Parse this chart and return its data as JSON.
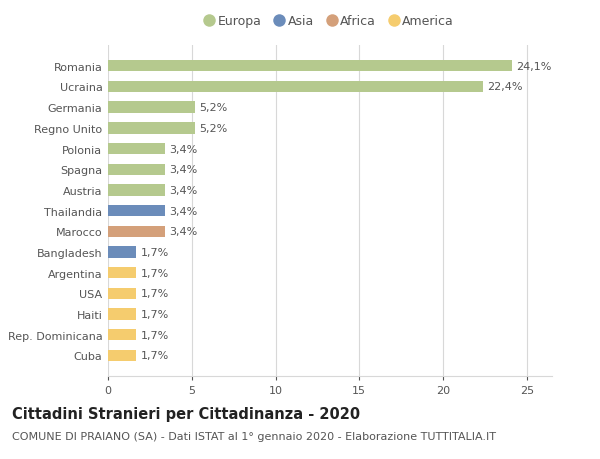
{
  "categories": [
    "Romania",
    "Ucraina",
    "Germania",
    "Regno Unito",
    "Polonia",
    "Spagna",
    "Austria",
    "Thailandia",
    "Marocco",
    "Bangladesh",
    "Argentina",
    "USA",
    "Haiti",
    "Rep. Dominicana",
    "Cuba"
  ],
  "values": [
    24.1,
    22.4,
    5.2,
    5.2,
    3.4,
    3.4,
    3.4,
    3.4,
    3.4,
    1.7,
    1.7,
    1.7,
    1.7,
    1.7,
    1.7
  ],
  "labels": [
    "24,1%",
    "22,4%",
    "5,2%",
    "5,2%",
    "3,4%",
    "3,4%",
    "3,4%",
    "3,4%",
    "3,4%",
    "1,7%",
    "1,7%",
    "1,7%",
    "1,7%",
    "1,7%",
    "1,7%"
  ],
  "continents": [
    "Europa",
    "Europa",
    "Europa",
    "Europa",
    "Europa",
    "Europa",
    "Europa",
    "Asia",
    "Africa",
    "Asia",
    "America",
    "America",
    "America",
    "America",
    "America"
  ],
  "continent_colors": {
    "Europa": "#b5c98e",
    "Asia": "#6b8cba",
    "Africa": "#d4a07a",
    "America": "#f5cc6e"
  },
  "legend_order": [
    "Europa",
    "Asia",
    "Africa",
    "America"
  ],
  "title": "Cittadini Stranieri per Cittadinanza - 2020",
  "subtitle": "COMUNE DI PRAIANO (SA) - Dati ISTAT al 1° gennaio 2020 - Elaborazione TUTTITALIA.IT",
  "xlim": [
    0,
    26.5
  ],
  "xticks": [
    0,
    5,
    10,
    15,
    20,
    25
  ],
  "background_color": "#ffffff",
  "grid_color": "#d8d8d8",
  "bar_height": 0.55,
  "title_fontsize": 10.5,
  "subtitle_fontsize": 8,
  "label_fontsize": 8,
  "ytick_fontsize": 8,
  "xtick_fontsize": 8,
  "legend_fontsize": 9
}
